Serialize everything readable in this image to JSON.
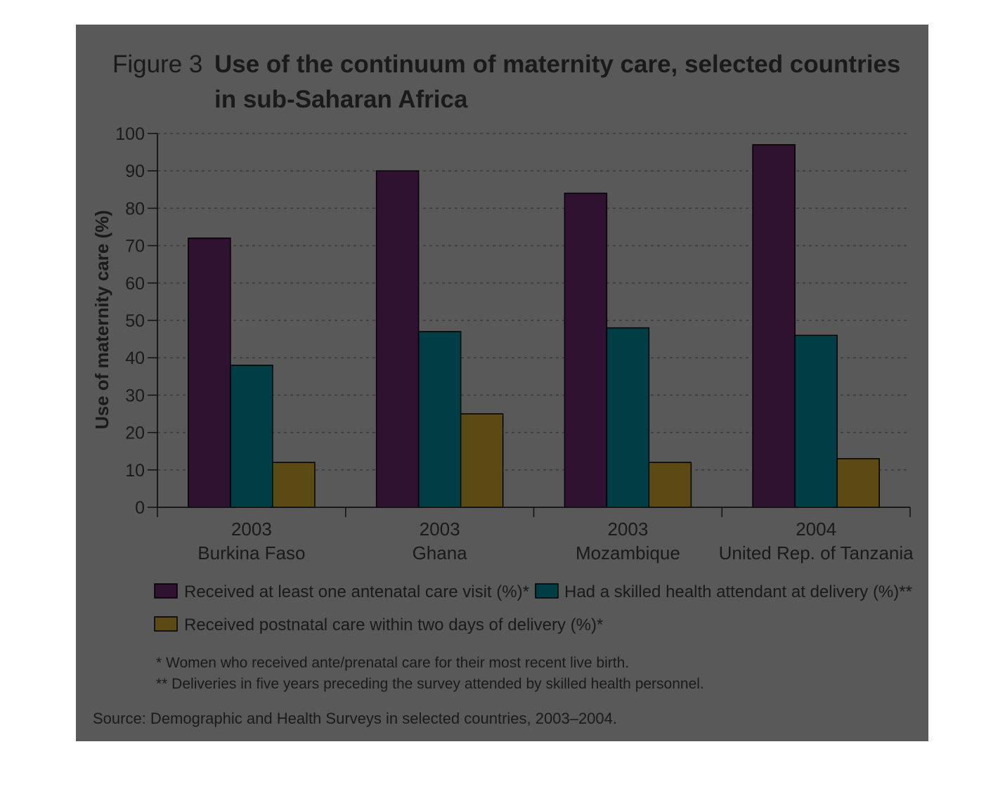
{
  "figure": {
    "label": "Figure 3",
    "title_line1": "Use of the continuum of maternity care, selected countries",
    "title_line2": "in sub-Saharan Africa"
  },
  "colors": {
    "panel_background": "#595959",
    "gridline": "#3a3a3a",
    "series": [
      "#c050c8",
      "#00f4ff",
      "#fff43a"
    ],
    "series_dark": [
      "#2e1230",
      "#003d44",
      "#5c4a15"
    ]
  },
  "legend": {
    "items": [
      "Received at least one antenatal care visit (%)*",
      "Had a skilled health attendant at delivery (%)**",
      "Received postnatal care within two days of delivery (%)*"
    ]
  },
  "notes": [
    "* Women who received ante/prenatal care for their most recent live birth.",
    "** Deliveries in five years preceding the survey attended by skilled health personnel."
  ],
  "source": "Source: Demographic and Health Surveys in selected countries, 2003–2004.",
  "chart_data": {
    "type": "bar",
    "categories": [
      "Burkina Faso",
      "Ghana",
      "Mozambique",
      "United Rep. of Tanzania"
    ],
    "years": [
      "2003",
      "2003",
      "2003",
      "2004"
    ],
    "series": [
      {
        "name": "Received at least one antenatal care visit (%)*",
        "values": [
          72,
          90,
          84,
          97
        ]
      },
      {
        "name": "Had a skilled health attendant at delivery (%)**",
        "values": [
          38,
          47,
          48,
          46
        ]
      },
      {
        "name": "Received postnatal care within two days of delivery (%)*",
        "values": [
          12,
          25,
          12,
          13
        ]
      }
    ],
    "ylabel": "Use of maternity care (%)",
    "ylim": [
      0,
      100
    ],
    "yticks": [
      0,
      10,
      20,
      30,
      40,
      50,
      60,
      70,
      80,
      90,
      100
    ],
    "grid": true,
    "legend_position": "bottom"
  }
}
